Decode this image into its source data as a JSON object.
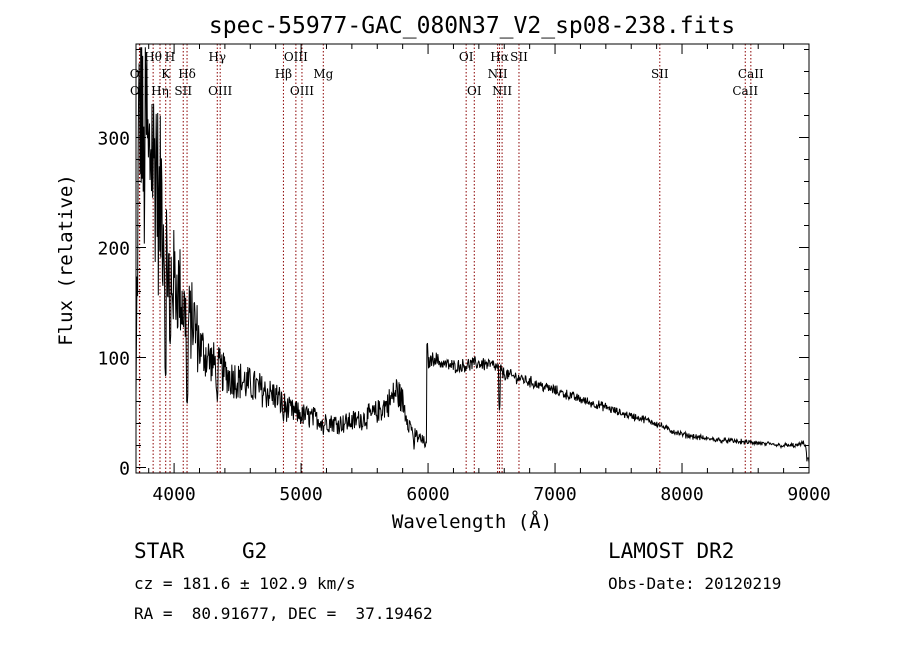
{
  "chart_data": {
    "type": "line",
    "title": "spec-55977-GAC_080N37_V2_sp08-238.fits",
    "xlabel": "Wavelength (Å)",
    "ylabel": "Flux (relative)",
    "xlim": [
      3700,
      9000
    ],
    "ylim": [
      -5,
      385
    ],
    "x_ticks": [
      4000,
      5000,
      6000,
      7000,
      8000,
      9000
    ],
    "y_ticks": [
      0,
      100,
      200,
      300
    ],
    "grid": false,
    "line_color": "#000000",
    "marker_color": "#8b0000",
    "spectrum_anchors": [
      [
        3700,
        60
      ],
      [
        3720,
        290
      ],
      [
        3740,
        360
      ],
      [
        3760,
        250
      ],
      [
        3780,
        320
      ],
      [
        3800,
        260
      ],
      [
        3820,
        310
      ],
      [
        3840,
        270
      ],
      [
        3860,
        290
      ],
      [
        3880,
        220
      ],
      [
        3900,
        250
      ],
      [
        3950,
        180
      ],
      [
        4000,
        170
      ],
      [
        4050,
        160
      ],
      [
        4100,
        130
      ],
      [
        4150,
        135
      ],
      [
        4200,
        110
      ],
      [
        4300,
        95
      ],
      [
        4400,
        85
      ],
      [
        4500,
        80
      ],
      [
        4600,
        75
      ],
      [
        4700,
        70
      ],
      [
        4800,
        65
      ],
      [
        4900,
        52
      ],
      [
        5000,
        48
      ],
      [
        5100,
        45
      ],
      [
        5200,
        42
      ],
      [
        5300,
        40
      ],
      [
        5400,
        42
      ],
      [
        5500,
        45
      ],
      [
        5600,
        50
      ],
      [
        5700,
        60
      ],
      [
        5750,
        70
      ],
      [
        5800,
        60
      ],
      [
        5850,
        40
      ],
      [
        5900,
        30
      ],
      [
        5950,
        25
      ],
      [
        5990,
        20
      ],
      [
        6000,
        95
      ],
      [
        6050,
        100
      ],
      [
        6100,
        95
      ],
      [
        6200,
        92
      ],
      [
        6300,
        93
      ],
      [
        6400,
        95
      ],
      [
        6500,
        93
      ],
      [
        6560,
        90
      ],
      [
        6600,
        85
      ],
      [
        6700,
        82
      ],
      [
        6800,
        78
      ],
      [
        6900,
        74
      ],
      [
        7000,
        70
      ],
      [
        7100,
        66
      ],
      [
        7200,
        62
      ],
      [
        7300,
        58
      ],
      [
        7400,
        55
      ],
      [
        7500,
        50
      ],
      [
        7600,
        47
      ],
      [
        7700,
        44
      ],
      [
        7800,
        40
      ],
      [
        7900,
        34
      ],
      [
        8000,
        30
      ],
      [
        8100,
        28
      ],
      [
        8200,
        26
      ],
      [
        8300,
        25
      ],
      [
        8400,
        24
      ],
      [
        8500,
        23
      ],
      [
        8600,
        22
      ],
      [
        8700,
        21
      ],
      [
        8800,
        20
      ],
      [
        8900,
        20
      ],
      [
        8960,
        22
      ],
      [
        8985,
        15
      ],
      [
        9000,
        5
      ]
    ],
    "dips": [
      {
        "x": 3934,
        "y": 80
      },
      {
        "x": 3968,
        "y": 110
      },
      {
        "x": 4102,
        "y": 55
      },
      {
        "x": 4340,
        "y": 60
      },
      {
        "x": 4861,
        "y": 40
      },
      {
        "x": 5175,
        "y": 28
      },
      {
        "x": 5890,
        "y": 15
      },
      {
        "x": 6563,
        "y": 50
      },
      {
        "x": 8985,
        "y": 3
      }
    ],
    "lines": [
      {
        "wl": 3727,
        "label": "OII",
        "row": 2
      },
      {
        "wl": 3729,
        "label": "OII",
        "row": 3
      },
      {
        "wl": 3835,
        "label": "Hθ",
        "row": 1
      },
      {
        "wl": 3889,
        "label": "Hη",
        "row": 3
      },
      {
        "wl": 3934,
        "label": "K",
        "row": 2
      },
      {
        "wl": 3968,
        "label": "H",
        "row": 1
      },
      {
        "wl": 4072,
        "label": "SII",
        "row": 3
      },
      {
        "wl": 4102,
        "label": "Hδ",
        "row": 2
      },
      {
        "wl": 4340,
        "label": "Hγ",
        "row": 1
      },
      {
        "wl": 4363,
        "label": "OIII",
        "row": 3
      },
      {
        "wl": 4861,
        "label": "Hβ",
        "row": 2
      },
      {
        "wl": 4959,
        "label": "OIII",
        "row": 1
      },
      {
        "wl": 5007,
        "label": "OIII",
        "row": 3
      },
      {
        "wl": 5175,
        "label": "Mg",
        "row": 2
      },
      {
        "wl": 6300,
        "label": "OI",
        "row": 1
      },
      {
        "wl": 6364,
        "label": "OI",
        "row": 3
      },
      {
        "wl": 6548,
        "label": "NII",
        "row": 2
      },
      {
        "wl": 6563,
        "label": "Hα",
        "row": 1
      },
      {
        "wl": 6583,
        "label": "NII",
        "row": 3
      },
      {
        "wl": 6716,
        "label": "SII",
        "row": 1
      },
      {
        "wl": 7825,
        "label": "SII",
        "row": 2
      },
      {
        "wl": 8498,
        "label": "CaII",
        "row": 3
      },
      {
        "wl": 8542,
        "label": "CaII",
        "row": 2
      }
    ]
  },
  "info": {
    "object_class": "STAR",
    "subclass": "G2",
    "survey": "LAMOST DR2",
    "cz": "cz = 181.6 ± 102.9 km/s",
    "obs_date": "Obs-Date: 20120219",
    "coords": "RA =  80.91677, DEC =  37.19462"
  }
}
